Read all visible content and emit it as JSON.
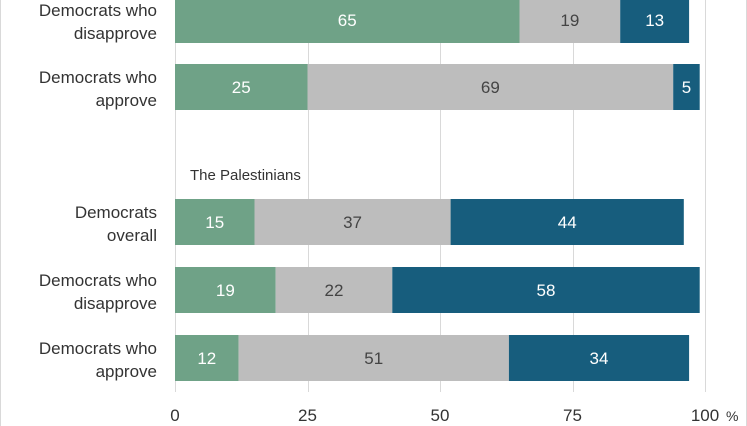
{
  "colors": {
    "segment_1": "#6fa287",
    "segment_2": "#bdbdbd",
    "segment_3": "#175d7d",
    "gridline": "#d9d9d9",
    "axis_text": "#333333",
    "label_text": "#333333",
    "segment_1_text": "#ffffff",
    "segment_2_text": "#444444",
    "segment_3_text": "#ffffff"
  },
  "chart_data": {
    "type": "bar",
    "orientation": "horizontal",
    "stacked": true,
    "xlim": [
      0,
      100
    ],
    "x_ticks": [
      0,
      25,
      50,
      75,
      100
    ],
    "x_tick_labels": [
      "0",
      "25",
      "50",
      "75",
      "100"
    ],
    "x_unit_label": "%",
    "grid": true,
    "groups": [
      {
        "title": "",
        "rows": [
          {
            "label": [
              "Democrats who",
              "disapprove"
            ],
            "values": [
              65,
              19,
              13
            ]
          },
          {
            "label": [
              "Democrats who",
              "approve"
            ],
            "values": [
              25,
              69,
              5
            ]
          }
        ]
      },
      {
        "title": "The Palestinians",
        "rows": [
          {
            "label": [
              "Democrats",
              "overall"
            ],
            "values": [
              15,
              37,
              44
            ]
          },
          {
            "label": [
              "Democrats who",
              "disapprove"
            ],
            "values": [
              19,
              22,
              58
            ]
          },
          {
            "label": [
              "Democrats who",
              "approve"
            ],
            "values": [
              12,
              51,
              34
            ]
          }
        ]
      }
    ]
  }
}
